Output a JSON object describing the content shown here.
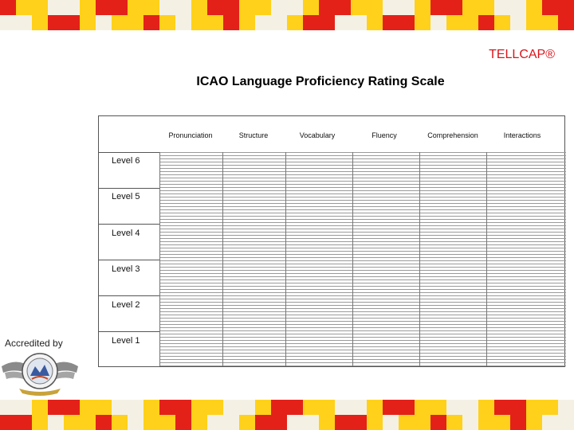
{
  "brand": {
    "part1": "TELL",
    "part2": "CAP®"
  },
  "title": "ICAO Language Proficiency Rating Scale",
  "table": {
    "columns": [
      "Pronunciation",
      "Structure",
      "Vocabulary",
      "Fluency",
      "Comprehension",
      "Interactions"
    ],
    "levels": [
      "Level 6",
      "Level 5",
      "Level 4",
      "Level 3",
      "Level 2",
      "Level 1"
    ]
  },
  "footer": {
    "accredited_label": "Accredited by"
  },
  "colors": {
    "red": "#e32119",
    "yellow": "#ffd11a",
    "light": "#f4f1e4",
    "accent": "#d9141b"
  }
}
